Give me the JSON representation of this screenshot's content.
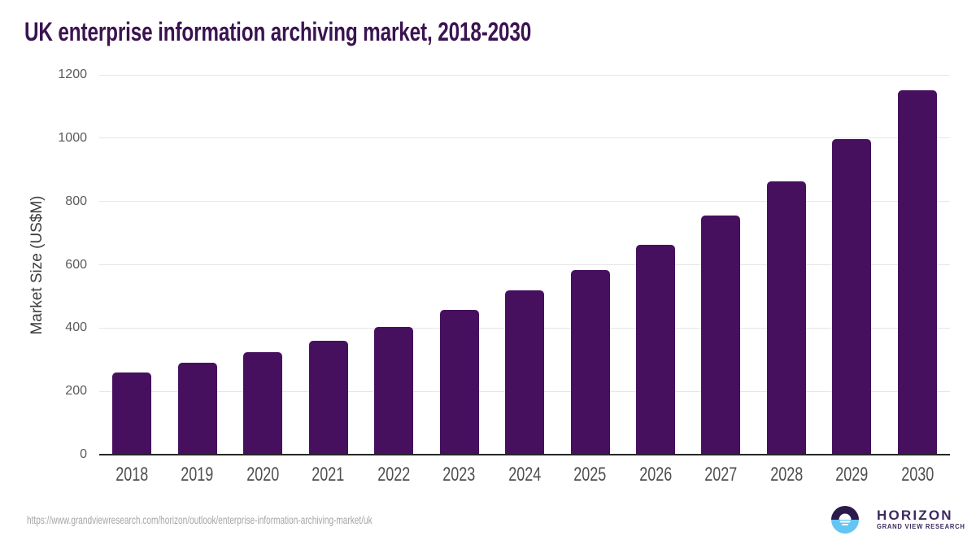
{
  "chart_data": {
    "type": "bar",
    "title": "UK enterprise information archiving market, 2018-2030",
    "ylabel": "Market Size (US$M)",
    "xlabel": "",
    "categories": [
      "2018",
      "2019",
      "2020",
      "2021",
      "2022",
      "2023",
      "2024",
      "2025",
      "2026",
      "2027",
      "2028",
      "2029",
      "2030"
    ],
    "values": [
      260,
      290,
      323,
      360,
      403,
      458,
      518,
      584,
      663,
      755,
      864,
      997,
      1150
    ],
    "ylim": [
      0,
      1200
    ],
    "yticks": [
      0,
      200,
      400,
      600,
      800,
      1000,
      1200
    ],
    "grid": true,
    "legend_position": "none",
    "bar_color": "#46105f"
  },
  "footer": {
    "source_url": "https://www.grandviewresearch.com/horizon/outlook/enterprise-information-archiving-market/uk"
  },
  "logo": {
    "brand": "HORIZON",
    "subtitle": "GRAND VIEW RESEARCH"
  },
  "colors": {
    "bar": "#46105f",
    "title": "#3a1350",
    "grid": "#e6e6e6",
    "axis_line": "#262626",
    "y_tick_text": "#5a5a5a",
    "x_tick_text": "#4f4f4f",
    "y_title_text": "#3d3d3d",
    "url_text": "#a6a6a6",
    "logo_purple": "#2b1b4a",
    "logo_blue": "#63c5f1",
    "logo_text": "#3b2a5e"
  }
}
